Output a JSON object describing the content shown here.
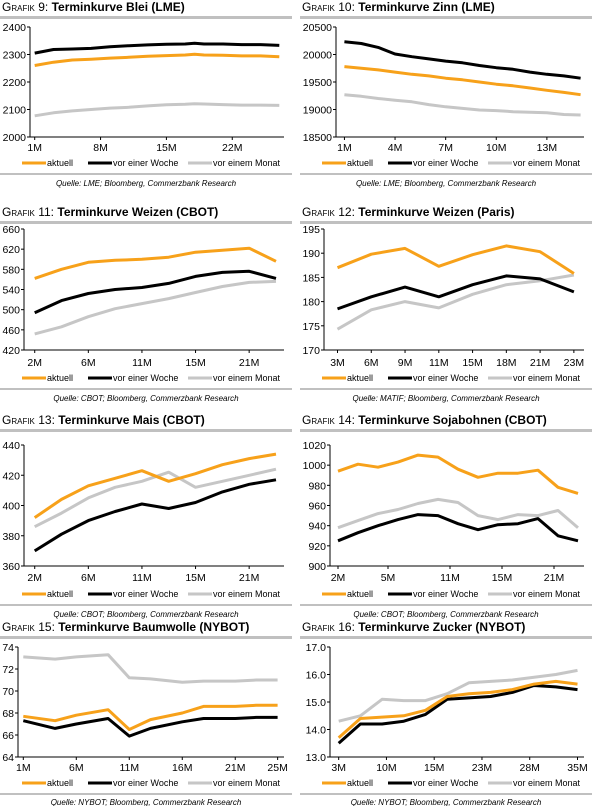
{
  "legend": [
    "aktuell",
    "vor einer Woche",
    "vor einem Monat"
  ],
  "colors": {
    "aktuell": "#f7a11a",
    "woche": "#000000",
    "monat": "#c6c6c6",
    "rule": "#c0c0c0"
  },
  "chart_data": [
    {
      "type": "line",
      "prefix": "Grafik 9:",
      "title": "Terminkurve Blei (LME)",
      "source": "Quelle: LME; Bloomberg, Commerzbank Research",
      "x": [
        1,
        3,
        5,
        7,
        9,
        11,
        13,
        15,
        17,
        18,
        19,
        21,
        23,
        25,
        27
      ],
      "xticks": [
        1,
        8,
        15,
        22
      ],
      "xticklabels": [
        "1M",
        "8M",
        "15M",
        "22M"
      ],
      "xlim": [
        0.5,
        27.5
      ],
      "ylim": [
        2000,
        2400
      ],
      "yticks": [
        2000,
        2100,
        2200,
        2300,
        2400
      ],
      "yticklabels": [
        "2000",
        "2100",
        "2200",
        "2300",
        "2400"
      ],
      "series": [
        {
          "name": "aktuell",
          "values": [
            2260,
            2272,
            2280,
            2283,
            2287,
            2290,
            2294,
            2296,
            2298,
            2301,
            2298,
            2297,
            2295,
            2295,
            2292
          ]
        },
        {
          "name": "vor einer Woche",
          "values": [
            2305,
            2318,
            2320,
            2322,
            2328,
            2332,
            2335,
            2337,
            2338,
            2341,
            2338,
            2338,
            2336,
            2336,
            2333
          ]
        },
        {
          "name": "vor einem Monat",
          "values": [
            2077,
            2088,
            2095,
            2100,
            2105,
            2108,
            2113,
            2117,
            2119,
            2121,
            2120,
            2118,
            2116,
            2116,
            2115
          ]
        }
      ]
    },
    {
      "type": "line",
      "prefix": "Grafik 10:",
      "title": "Terminkurve Zinn (LME)",
      "source": "Quelle: LME; Bloomberg, Commerzbank Research",
      "x": [
        1,
        2,
        3,
        4,
        5,
        6,
        7,
        8,
        9,
        10,
        11,
        12,
        13,
        14,
        15
      ],
      "xticks": [
        1,
        4,
        7,
        10,
        13
      ],
      "xticklabels": [
        "1M",
        "4M",
        "7M",
        "10M",
        "13M"
      ],
      "xlim": [
        0.5,
        15.2
      ],
      "ylim": [
        18500,
        20500
      ],
      "yticks": [
        18500,
        19000,
        19500,
        20000,
        20500
      ],
      "yticklabels": [
        "18500",
        "19000",
        "19500",
        "20000",
        "20500"
      ],
      "series": [
        {
          "name": "aktuell",
          "values": [
            19780,
            19750,
            19720,
            19680,
            19640,
            19610,
            19570,
            19540,
            19500,
            19460,
            19430,
            19390,
            19350,
            19310,
            19270
          ]
        },
        {
          "name": "vor einer Woche",
          "values": [
            20230,
            20200,
            20130,
            20010,
            19960,
            19920,
            19880,
            19850,
            19800,
            19760,
            19730,
            19680,
            19640,
            19610,
            19570
          ]
        },
        {
          "name": "vor einem Monat",
          "values": [
            19270,
            19240,
            19200,
            19170,
            19140,
            19090,
            19050,
            19020,
            18990,
            18980,
            18960,
            18950,
            18940,
            18910,
            18900
          ]
        }
      ]
    },
    {
      "type": "line",
      "prefix": "Grafik 11:",
      "title": "Terminkurve Weizen (CBOT)",
      "source": "Quelle: CBOT; Bloomberg, Commerzbank Research",
      "x": [
        0,
        1,
        2,
        3,
        4,
        5,
        6,
        7,
        8,
        9
      ],
      "xticks": [
        0,
        2,
        4,
        6,
        8
      ],
      "xticklabels": [
        "2M",
        "6M",
        "11M",
        "15M",
        "21M"
      ],
      "xlim": [
        -0.4,
        9.3
      ],
      "ylim": [
        420,
        660
      ],
      "yticks": [
        420,
        460,
        500,
        540,
        580,
        620,
        660
      ],
      "yticklabels": [
        "420",
        "460",
        "500",
        "540",
        "580",
        "620",
        "660"
      ],
      "series": [
        {
          "name": "aktuell",
          "values": [
            562,
            580,
            594,
            598,
            600,
            604,
            614,
            618,
            622,
            596
          ]
        },
        {
          "name": "vor einer Woche",
          "values": [
            494,
            518,
            532,
            540,
            544,
            552,
            566,
            574,
            576,
            562
          ]
        },
        {
          "name": "vor einem Monat",
          "values": [
            452,
            466,
            486,
            502,
            512,
            522,
            534,
            546,
            554,
            556
          ]
        }
      ]
    },
    {
      "type": "line",
      "prefix": "Grafik 12:",
      "title": "Terminkurve Weizen (Paris)",
      "source": "Quelle: MATIF; Bloomberg, Commerzbank Research",
      "x": [
        0,
        1,
        2,
        3,
        4,
        5,
        6,
        7
      ],
      "xticks": [
        0,
        1,
        2,
        3,
        4,
        5,
        6,
        7
      ],
      "xticklabels": [
        "3M",
        "6M",
        "9M",
        "11M",
        "15M",
        "18M",
        "21M",
        "23M"
      ],
      "xlim": [
        -0.4,
        7.3
      ],
      "ylim": [
        170,
        195
      ],
      "yticks": [
        170,
        175,
        180,
        185,
        190,
        195
      ],
      "yticklabels": [
        "170",
        "175",
        "180",
        "185",
        "190",
        "195"
      ],
      "series": [
        {
          "name": "aktuell",
          "values": [
            187,
            189.8,
            191,
            187.3,
            189.7,
            191.5,
            190.3,
            185.8
          ]
        },
        {
          "name": "vor einer Woche",
          "values": [
            178.5,
            181,
            183,
            181,
            183.5,
            185.3,
            184.7,
            182
          ]
        },
        {
          "name": "vor einem Monat",
          "values": [
            174.3,
            178.3,
            180,
            178.7,
            181.5,
            183.5,
            184.3,
            185.5
          ]
        }
      ]
    },
    {
      "type": "line",
      "prefix": "Grafik 13:",
      "title": "Terminkurve Mais (CBOT)",
      "source": "Quelle: CBOT; Bloomberg, Commerzbank Research",
      "x": [
        0,
        1,
        2,
        3,
        4,
        5,
        6,
        7,
        8,
        9
      ],
      "xticks": [
        0,
        2,
        4,
        6,
        8
      ],
      "xticklabels": [
        "2M",
        "6M",
        "11M",
        "15M",
        "21M"
      ],
      "xlim": [
        -0.4,
        9.3
      ],
      "ylim": [
        360,
        440
      ],
      "yticks": [
        360,
        380,
        400,
        420,
        440
      ],
      "yticklabels": [
        "360",
        "380",
        "400",
        "420",
        "440"
      ],
      "series": [
        {
          "name": "aktuell",
          "values": [
            392,
            404,
            413,
            418,
            423,
            416,
            421,
            427,
            431,
            434
          ]
        },
        {
          "name": "vor einer Woche",
          "values": [
            370,
            381,
            390,
            396,
            401,
            398,
            402,
            409,
            414,
            417
          ]
        },
        {
          "name": "vor einem Monat",
          "values": [
            386,
            395,
            405,
            412,
            416,
            422,
            412,
            416,
            420,
            424
          ]
        }
      ]
    },
    {
      "type": "line",
      "prefix": "Grafik 14:",
      "title": "Terminkurve Sojabohnen (CBOT)",
      "source": "Quelle: CBOT; Bloomberg, Commerzbank Research",
      "x": [
        0,
        1,
        2,
        3,
        4,
        5,
        6,
        7,
        8,
        9,
        10,
        11,
        12
      ],
      "xticks": [
        0,
        2.5,
        5.6,
        8.2,
        10.8
      ],
      "xticklabels": [
        "2M",
        "5M",
        "11M",
        "15M",
        "21M"
      ],
      "xlim": [
        -0.4,
        12.3
      ],
      "ylim": [
        900,
        1020
      ],
      "yticks": [
        900,
        920,
        940,
        960,
        980,
        1000,
        1020
      ],
      "yticklabels": [
        "900",
        "920",
        "940",
        "960",
        "980",
        "1000",
        "1020"
      ],
      "series": [
        {
          "name": "aktuell",
          "values": [
            994,
            1001,
            998,
            1003,
            1010,
            1008,
            996,
            988,
            992,
            992,
            995,
            978,
            972
          ]
        },
        {
          "name": "vor einer Woche",
          "values": [
            925,
            933,
            940,
            946,
            951,
            950,
            942,
            936,
            941,
            942,
            947,
            930,
            925
          ]
        },
        {
          "name": "vor einem Monat",
          "values": [
            938,
            945,
            952,
            956,
            962,
            966,
            963,
            950,
            946,
            951,
            950,
            955,
            938
          ]
        }
      ]
    },
    {
      "type": "line",
      "prefix": "Grafik 15:",
      "title": "Terminkurve Baumwolle (NYBOT)",
      "source": "Quelle: NYBOT; Bloomberg, Commerzbank Research",
      "x": [
        1,
        4,
        6,
        9,
        11,
        13,
        16,
        18,
        21,
        23,
        25
      ],
      "xticks": [
        1,
        6,
        11,
        16,
        21,
        25
      ],
      "xticklabels": [
        "1M",
        "6M",
        "11M",
        "16M",
        "21M",
        "25M"
      ],
      "xlim": [
        0.5,
        25.6
      ],
      "ylim": [
        64,
        74
      ],
      "yticks": [
        64,
        66,
        68,
        70,
        72,
        74
      ],
      "yticklabels": [
        "64",
        "66",
        "68",
        "70",
        "72",
        "74"
      ],
      "series": [
        {
          "name": "aktuell",
          "values": [
            67.7,
            67.3,
            67.8,
            68.3,
            66.5,
            67.4,
            68,
            68.6,
            68.6,
            68.7,
            68.7
          ]
        },
        {
          "name": "vor einer Woche",
          "values": [
            67.3,
            66.6,
            67,
            67.5,
            65.9,
            66.6,
            67.2,
            67.5,
            67.5,
            67.6,
            67.6
          ]
        },
        {
          "name": "vor einem Monat",
          "values": [
            73.1,
            72.9,
            73.1,
            73.3,
            71.2,
            71.1,
            70.8,
            70.9,
            70.9,
            71,
            71
          ]
        }
      ]
    },
    {
      "type": "line",
      "prefix": "Grafik 16:",
      "title": "Terminkurve Zucker (NYBOT)",
      "source": "Quelle: NYBOT; Bloomberg, Commerzbank Research",
      "x": [
        0,
        1,
        2,
        3,
        4,
        5,
        6,
        7,
        8,
        9,
        10,
        11
      ],
      "xticks": [
        0,
        2.2,
        4.4,
        6.6,
        8.8,
        11
      ],
      "xticklabels": [
        "3M",
        "10M",
        "15M",
        "23M",
        "28M",
        "35M"
      ],
      "xlim": [
        -0.4,
        11.3
      ],
      "ylim": [
        13,
        17
      ],
      "yticks": [
        13,
        14,
        15,
        16,
        17
      ],
      "yticklabels": [
        "13.0",
        "14.0",
        "15.0",
        "16.0",
        "17.0"
      ],
      "series": [
        {
          "name": "aktuell",
          "values": [
            13.7,
            14.4,
            14.45,
            14.5,
            14.7,
            15.2,
            15.3,
            15.35,
            15.45,
            15.65,
            15.75,
            15.65
          ]
        },
        {
          "name": "vor einer Woche",
          "values": [
            13.5,
            14.2,
            14.2,
            14.3,
            14.55,
            15.1,
            15.15,
            15.2,
            15.35,
            15.6,
            15.55,
            15.45
          ]
        },
        {
          "name": "vor einem Monat",
          "values": [
            14.3,
            14.5,
            15.1,
            15.05,
            15.05,
            15.3,
            15.7,
            15.75,
            15.8,
            15.9,
            16.0,
            16.15
          ]
        }
      ]
    }
  ]
}
